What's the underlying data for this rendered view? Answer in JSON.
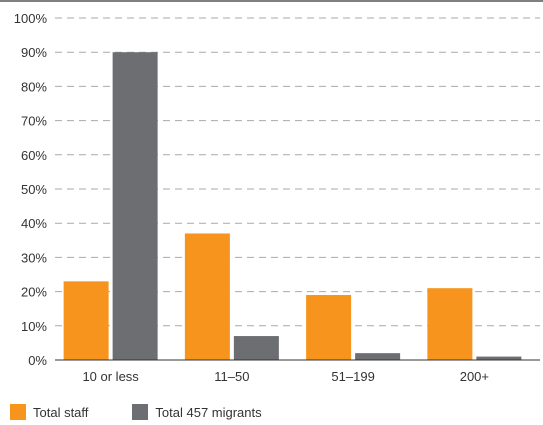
{
  "chart_data": {
    "type": "bar",
    "title": "",
    "xlabel": "",
    "ylabel": "",
    "categories": [
      "10 or less",
      "11–50",
      "51–199",
      "200+"
    ],
    "series": [
      {
        "name": "Total staff",
        "color": "#f7941d",
        "values": [
          23,
          37,
          19,
          21
        ]
      },
      {
        "name": "Total 457 migrants",
        "color": "#6d6e71",
        "values": [
          90,
          7,
          2,
          1
        ]
      }
    ],
    "ylim": [
      0,
      100
    ],
    "y_ticks": [
      "0%",
      "10%",
      "20%",
      "30%",
      "40%",
      "50%",
      "60%",
      "70%",
      "80%",
      "90%",
      "100%"
    ],
    "grid": "dashed horizontal",
    "legend_position": "bottom-left"
  }
}
